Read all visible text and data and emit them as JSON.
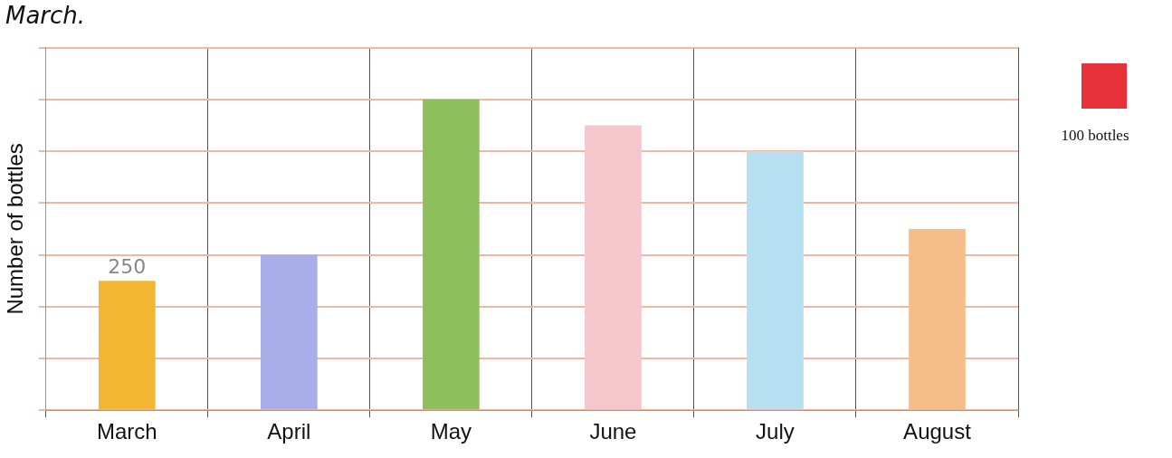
{
  "chart_data": {
    "type": "bar",
    "categories": [
      "March",
      "April",
      "May",
      "June",
      "July",
      "August"
    ],
    "values": [
      250,
      300,
      600,
      550,
      500,
      350
    ],
    "colors": [
      "#f2b632",
      "#a9aee8",
      "#8fbf5a",
      "#f5c6cc",
      "#b5e0f2",
      "#f5bd8a"
    ],
    "value_labels": [
      "250",
      null,
      null,
      null,
      null,
      null
    ],
    "ylabel": "Number of bottles",
    "ylim": [
      0,
      700
    ],
    "yticks": [
      {
        "value": 0,
        "label": null
      },
      {
        "value": 100,
        "label": null
      },
      {
        "value": 200,
        "label": null
      },
      {
        "value": 300,
        "label": null
      },
      {
        "value": 400,
        "label": null
      },
      {
        "value": 500,
        "label": null
      },
      {
        "value": 600,
        "label": null
      },
      {
        "value": 700,
        "label": null
      }
    ],
    "grid": true,
    "annotations": [
      "March.",
      "100 bottles"
    ]
  }
}
